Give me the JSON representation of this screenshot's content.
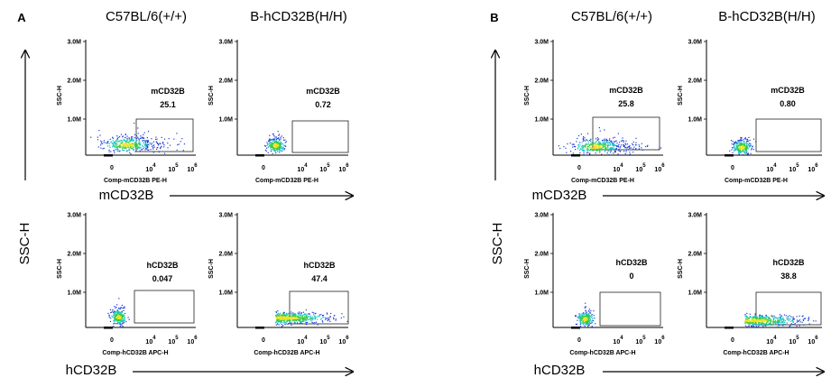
{
  "axes": {
    "y_ticks": [
      "3.0M",
      "2.0M",
      "1.0M"
    ],
    "y_label": "SSC-H",
    "x_tick_zero": "0",
    "x_tick_exps": [
      "4",
      "5",
      "6"
    ],
    "x_tick_base": "10"
  },
  "panels": [
    {
      "letter": "A",
      "col_headers": [
        "C57BL/6(+/+)",
        "B-hCD32B(H/H)"
      ],
      "rows": [
        {
          "x_marker": "mCD32B",
          "x_axis": "Comp-mCD32B PE-H",
          "gate": "mCD32B",
          "values": [
            "25.1",
            "0.72"
          ]
        },
        {
          "x_marker": "hCD32B",
          "x_axis": "Comp-hCD32B APC-H",
          "gate": "hCD32B",
          "values": [
            "0.047",
            "47.4"
          ]
        }
      ],
      "side_label": "SSC-H"
    },
    {
      "letter": "B",
      "col_headers": [
        "C57BL/6(+/+)",
        "B-hCD32B(H/H)"
      ],
      "rows": [
        {
          "x_marker": "mCD32B",
          "x_axis": "Comp-mCD32B PE-H",
          "gate": "mCD32B",
          "values": [
            "25.8",
            "0.80"
          ]
        },
        {
          "x_marker": "hCD32B",
          "x_axis": "Comp-hCD32B APC-H",
          "gate": "hCD32B",
          "values": [
            "0",
            "38.8"
          ]
        }
      ],
      "side_label": "SSC-H"
    }
  ],
  "chart_data": [
    {
      "type": "scatter",
      "title": "C57BL/6(+/+)",
      "xlabel": "Comp-mCD32B PE-H",
      "ylabel": "SSC-H",
      "ylim": [
        0,
        3000000
      ],
      "gate_label": "mCD32B",
      "gate_percent": 25.1
    },
    {
      "type": "scatter",
      "title": "B-hCD32B(H/H)",
      "xlabel": "Comp-mCD32B PE-H",
      "ylabel": "SSC-H",
      "ylim": [
        0,
        3000000
      ],
      "gate_label": "mCD32B",
      "gate_percent": 0.72
    },
    {
      "type": "scatter",
      "title": "C57BL/6(+/+)",
      "xlabel": "Comp-hCD32B APC-H",
      "ylabel": "SSC-H",
      "ylim": [
        0,
        3000000
      ],
      "gate_label": "hCD32B",
      "gate_percent": 0.047
    },
    {
      "type": "scatter",
      "title": "B-hCD32B(H/H)",
      "xlabel": "Comp-hCD32B APC-H",
      "ylabel": "SSC-H",
      "ylim": [
        0,
        3000000
      ],
      "gate_label": "hCD32B",
      "gate_percent": 47.4
    },
    {
      "type": "scatter",
      "title": "C57BL/6(+/+)",
      "xlabel": "Comp-mCD32B PE-H",
      "ylabel": "SSC-H",
      "ylim": [
        0,
        3000000
      ],
      "gate_label": "mCD32B",
      "gate_percent": 25.8
    },
    {
      "type": "scatter",
      "title": "B-hCD32B(H/H)",
      "xlabel": "Comp-mCD32B PE-H",
      "ylabel": "SSC-H",
      "ylim": [
        0,
        3000000
      ],
      "gate_label": "mCD32B",
      "gate_percent": 0.8
    },
    {
      "type": "scatter",
      "title": "C57BL/6(+/+)",
      "xlabel": "Comp-hCD32B APC-H",
      "ylabel": "SSC-H",
      "ylim": [
        0,
        3000000
      ],
      "gate_label": "hCD32B",
      "gate_percent": 0
    },
    {
      "type": "scatter",
      "title": "B-hCD32B(H/H)",
      "xlabel": "Comp-hCD32B APC-H",
      "ylabel": "SSC-H",
      "ylim": [
        0,
        3000000
      ],
      "gate_label": "hCD32B",
      "gate_percent": 38.8
    }
  ],
  "colors": {
    "event_low": "#1a3bd6",
    "event_mid": "#19c4c4",
    "event_high": "#2ecc40",
    "event_peak": "#f0e020",
    "axis": "#000000"
  }
}
